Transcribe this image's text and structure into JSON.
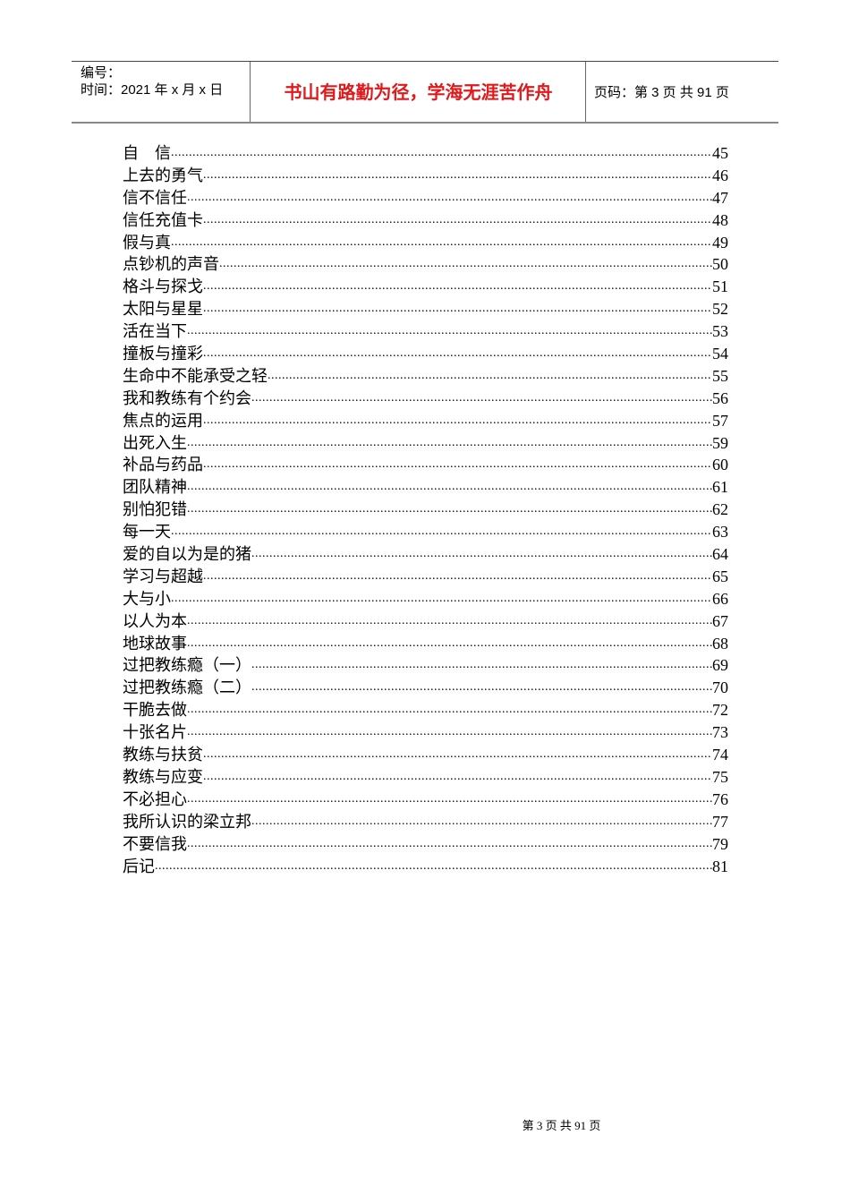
{
  "header": {
    "number_label": "编号：",
    "date_label": "时间：2021 年 x 月 x 日",
    "motto": "书山有路勤为径，学海无涯苦作舟",
    "page_info": "页码：第 3 页  共 91 页"
  },
  "toc": [
    {
      "title": "自　信",
      "page": "45"
    },
    {
      "title": "上去的勇气",
      "page": "46"
    },
    {
      "title": "信不信任",
      "page": "47"
    },
    {
      "title": "信任充值卡",
      "page": "48"
    },
    {
      "title": "假与真",
      "page": "49"
    },
    {
      "title": "点钞机的声音",
      "page": "50"
    },
    {
      "title": "格斗与探戈",
      "page": "51"
    },
    {
      "title": "太阳与星星",
      "page": "52"
    },
    {
      "title": "活在当下",
      "page": "53"
    },
    {
      "title": "撞板与撞彩",
      "page": "54"
    },
    {
      "title": "生命中不能承受之轻",
      "page": "55"
    },
    {
      "title": "我和教练有个约会",
      "page": "56"
    },
    {
      "title": "焦点的运用",
      "page": "57"
    },
    {
      "title": "出死入生",
      "page": "59"
    },
    {
      "title": "补品与药品",
      "page": "60"
    },
    {
      "title": "团队精神",
      "page": "61"
    },
    {
      "title": "别怕犯错",
      "page": "62"
    },
    {
      "title": "每一天",
      "page": "63"
    },
    {
      "title": "爱的自以为是的猪",
      "page": "64"
    },
    {
      "title": "学习与超越",
      "page": "65"
    },
    {
      "title": "大与小",
      "page": "66"
    },
    {
      "title": "以人为本",
      "page": "67"
    },
    {
      "title": "地球故事",
      "page": "68"
    },
    {
      "title": "过把教练瘾（一）",
      "page": "69"
    },
    {
      "title": "过把教练瘾（二）",
      "page": "70"
    },
    {
      "title": "干脆去做",
      "page": "72"
    },
    {
      "title": "十张名片",
      "page": "73"
    },
    {
      "title": "教练与扶贫",
      "page": "74"
    },
    {
      "title": "教练与应变",
      "page": "75"
    },
    {
      "title": "不必担心",
      "page": "76"
    },
    {
      "title": "我所认识的梁立邦",
      "page": "77"
    },
    {
      "title": "不要信我",
      "page": "79"
    },
    {
      "title": "后记",
      "page": "81"
    }
  ],
  "footer": {
    "text": "第 3 页 共 91 页"
  },
  "colors": {
    "motto": "#e0191b"
  }
}
